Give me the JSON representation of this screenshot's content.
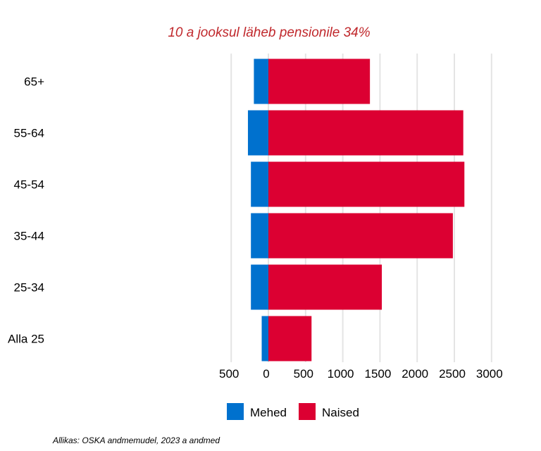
{
  "colors": {
    "mehed": "#0071CE",
    "naised": "#DC0032",
    "annotation": "#C0282C",
    "grid": "#E4E4E4",
    "text": "#000000"
  },
  "chart_data": {
    "type": "bar",
    "orientation": "horizontal",
    "layout": "diverging",
    "annotation": "10 a jooksul läheb pensionile 34%",
    "source": "Allikas: OSKA andmemudel, 2023 a andmed",
    "categories": [
      "Alla 25",
      "25-34",
      "35-44",
      "45-54",
      "55-64",
      "65+"
    ],
    "series": [
      {
        "name": "Mehed",
        "values": [
          90,
          235,
          235,
          235,
          275,
          195
        ],
        "direction": "left"
      },
      {
        "name": "Naised",
        "values": [
          580,
          1525,
          2480,
          2635,
          2620,
          1365
        ],
        "direction": "right"
      }
    ],
    "x_ticks": [
      "500",
      "0",
      "500",
      "1000",
      "1500",
      "2000",
      "2500",
      "3000"
    ],
    "xlim": [
      -500,
      3000
    ],
    "grid": true,
    "legend_position": "bottom"
  }
}
